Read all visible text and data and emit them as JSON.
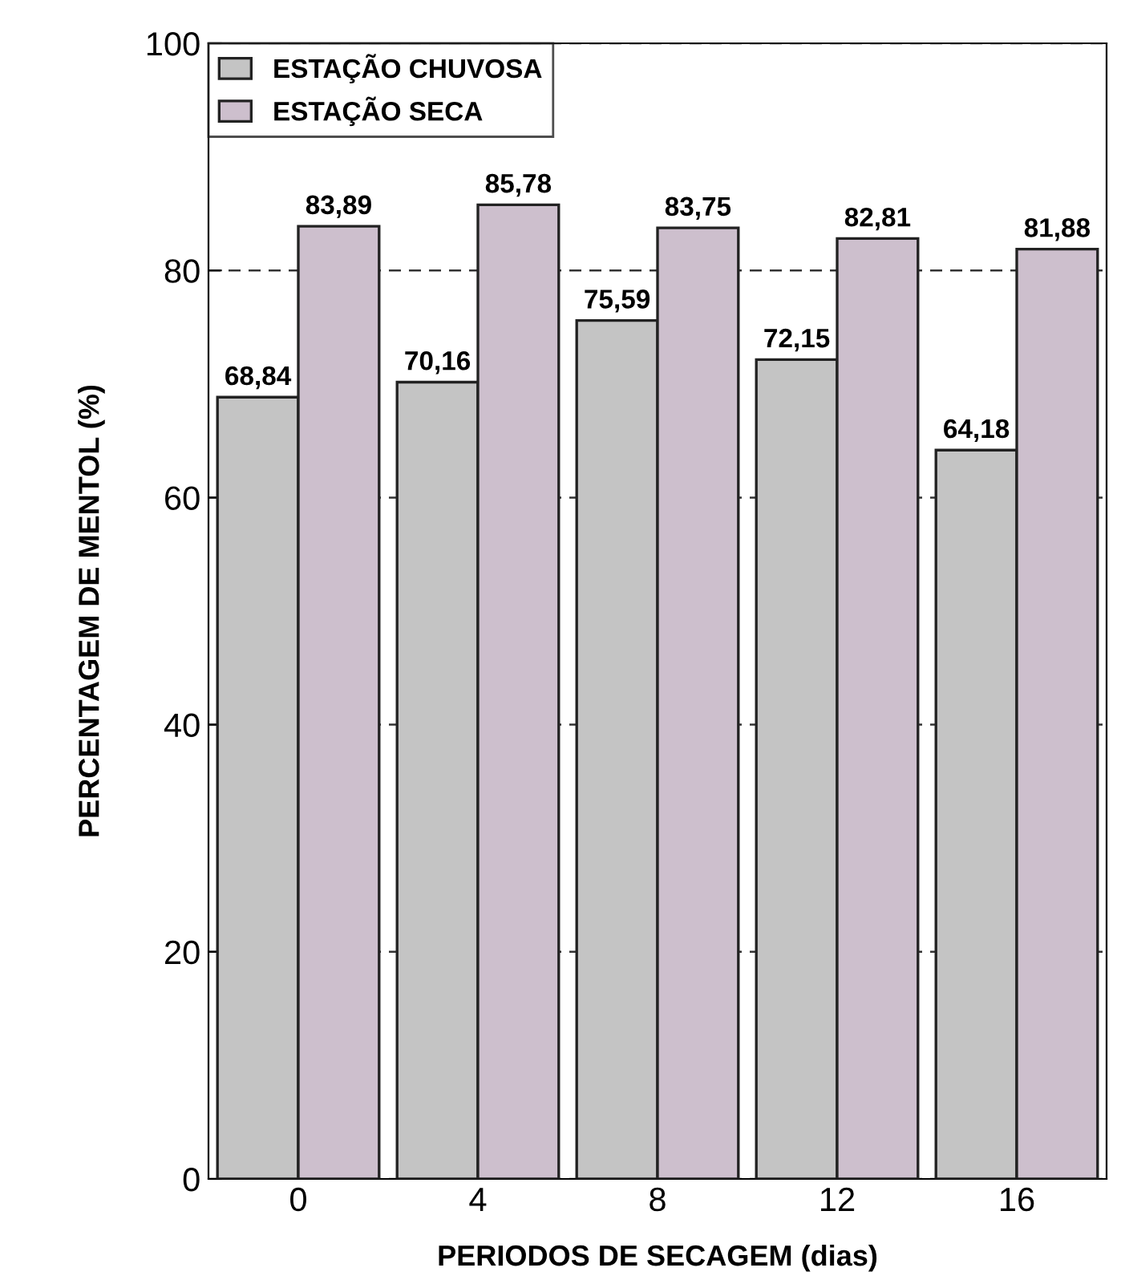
{
  "chart_data": {
    "type": "bar",
    "xlabel": "PERIODOS DE SECAGEM (dias)",
    "ylabel": "PERCENTAGEM DE MENTOL (%)",
    "categories": [
      "0",
      "4",
      "8",
      "12",
      "16"
    ],
    "series": [
      {
        "name": "ESTAÇÃO CHUVOSA",
        "color": "#c4c4c4",
        "values": [
          68.84,
          70.16,
          75.59,
          72.15,
          64.18
        ],
        "value_labels": [
          "68,84",
          "70,16",
          "75,59",
          "72,15",
          "64,18"
        ]
      },
      {
        "name": "ESTAÇÃO SECA",
        "color": "#cdbfcd",
        "values": [
          83.89,
          85.78,
          83.75,
          82.81,
          81.88
        ],
        "value_labels": [
          "83,89",
          "85,78",
          "83,75",
          "82,81",
          "81,88"
        ]
      }
    ],
    "ylim": [
      0,
      100
    ],
    "yticks": [
      0,
      20,
      40,
      60,
      80,
      100
    ],
    "grid": "y",
    "legend": "top left"
  }
}
